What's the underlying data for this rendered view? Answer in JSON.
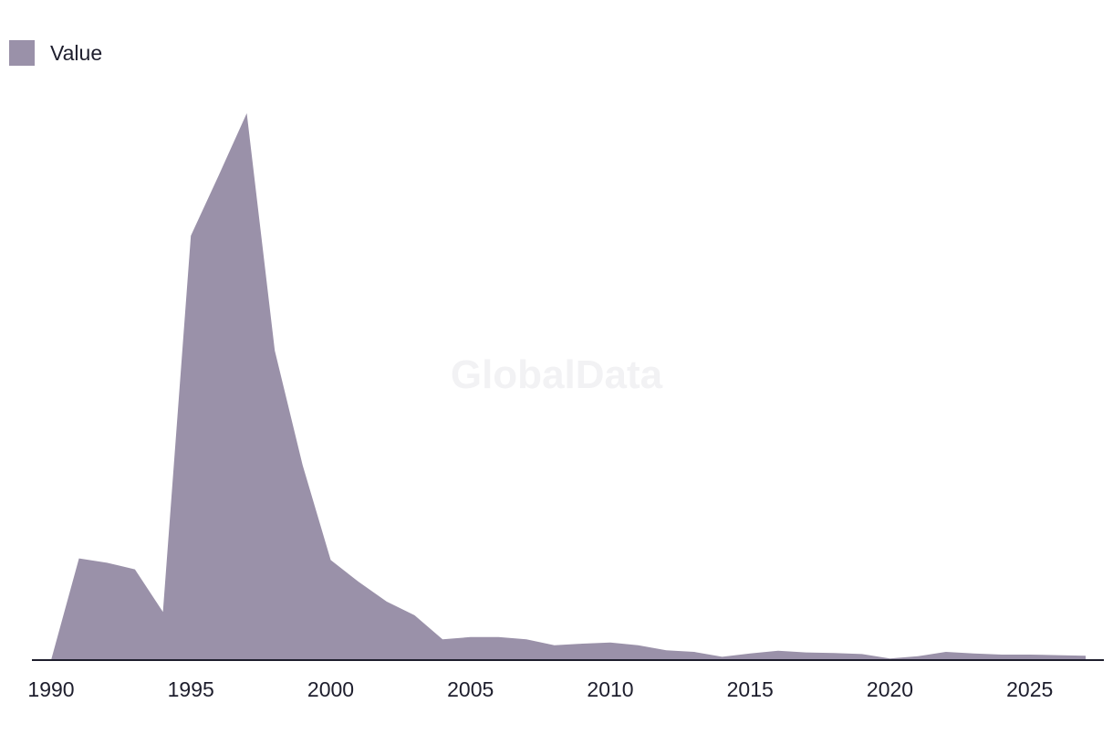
{
  "colors": {
    "area": "#9a91a9",
    "axis": "#1e1e2d"
  },
  "watermark": "GlobalData",
  "chart_data": {
    "type": "area",
    "title": "",
    "xlabel": "",
    "ylabel": "",
    "legend": {
      "position": "top-left",
      "entries": [
        "Value"
      ]
    },
    "grid": false,
    "xlim": [
      1990,
      2027
    ],
    "ylim": [
      0,
      100
    ],
    "x_ticks": [
      1990,
      1995,
      2000,
      2005,
      2010,
      2015,
      2020,
      2025
    ],
    "x": [
      1990,
      1991,
      1992,
      1993,
      1994,
      1995,
      1996,
      1997,
      1998,
      1999,
      2000,
      2001,
      2002,
      2003,
      2004,
      2005,
      2006,
      2007,
      2008,
      2009,
      2010,
      2011,
      2012,
      2013,
      2014,
      2015,
      2016,
      2017,
      2018,
      2019,
      2020,
      2021,
      2022,
      2023,
      2024,
      2025,
      2026,
      2027
    ],
    "series": [
      {
        "name": "Value",
        "values": [
          0,
          18.6,
          17.8,
          16.6,
          8.8,
          77.6,
          88.7,
          100,
          56.6,
          35.6,
          18.3,
          14.3,
          10.7,
          8.2,
          3.8,
          4.2,
          4.2,
          3.8,
          2.7,
          3.0,
          3.2,
          2.7,
          1.8,
          1.5,
          0.6,
          1.2,
          1.7,
          1.4,
          1.3,
          1.1,
          0.3,
          0.7,
          1.5,
          1.2,
          1.0,
          1.0,
          0.9,
          0.8
        ]
      }
    ]
  }
}
